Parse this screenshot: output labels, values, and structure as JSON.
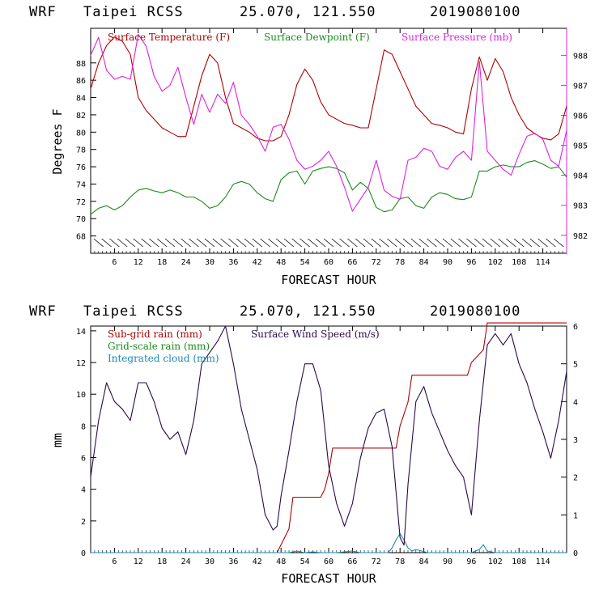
{
  "colors": {
    "temperature": "#b00000",
    "dewpoint": "#1a8a1a",
    "pressure": "#dd22dd",
    "subgrid_rain": "#b00000",
    "gridscale_rain": "#1a8a1a",
    "cloud": "#1a8ab0",
    "wind": "#2a0a4a",
    "axis_right_top": "#dd22dd"
  },
  "chart_data": [
    {
      "type": "line",
      "header": {
        "model": "WRF",
        "station": "Taipei RCSS",
        "coords": "25.070, 121.550",
        "init": "2019080100"
      },
      "xlabel": "FORECAST HOUR",
      "ylabel_left": "Degrees F",
      "xlim": [
        0,
        120
      ],
      "ylim_left": [
        66,
        92
      ],
      "ylim_right": [
        981.4,
        988.9
      ],
      "x_ticks": [
        6,
        12,
        18,
        24,
        30,
        36,
        42,
        48,
        54,
        60,
        66,
        72,
        78,
        84,
        90,
        96,
        102,
        108,
        114
      ],
      "x_tick_labels": [
        "6",
        "12",
        "18",
        "24",
        "30",
        "36",
        "42",
        "48",
        "54",
        "60",
        "66",
        "72",
        "78",
        "84",
        "90",
        "96",
        "102",
        "108",
        "114"
      ],
      "y_ticks_left": [
        68,
        70,
        72,
        74,
        76,
        78,
        80,
        82,
        84,
        86,
        88
      ],
      "y_tick_labels_left": [
        "68",
        "70",
        "72",
        "74",
        "76",
        "78",
        "80",
        "82",
        "84",
        "86",
        "88"
      ],
      "y_ticks_right": [
        982,
        983,
        984,
        985,
        986,
        987,
        988
      ],
      "y_tick_labels_right": [
        "982",
        "983",
        "984",
        "985",
        "986",
        "987",
        "988"
      ],
      "legend": [
        {
          "label": "Surface Temperature (F)",
          "color_key": "temperature"
        },
        {
          "label": "Surface Dewpoint (F)",
          "color_key": "dewpoint"
        },
        {
          "label": "Surface Pressure (mb)",
          "color_key": "pressure"
        }
      ],
      "series": [
        {
          "name": "Surface Temperature (F)",
          "axis": "left",
          "color_key": "temperature",
          "x": [
            0,
            2,
            4,
            6,
            8,
            10,
            12,
            14,
            16,
            18,
            20,
            22,
            24,
            26,
            28,
            30,
            32,
            34,
            36,
            38,
            40,
            42,
            44,
            46,
            48,
            50,
            52,
            54,
            56,
            58,
            60,
            62,
            64,
            66,
            68,
            70,
            72,
            74,
            76,
            78,
            80,
            82,
            84,
            86,
            88,
            90,
            92,
            94,
            96,
            98,
            100,
            102,
            104,
            106,
            108,
            110,
            112,
            114,
            116,
            118,
            120
          ],
          "y": [
            85,
            88,
            90,
            91,
            90.5,
            89,
            84,
            82.5,
            81.5,
            80.5,
            80,
            79.5,
            79.5,
            83,
            86.5,
            89,
            88,
            84,
            81,
            80.5,
            80,
            79.3,
            79,
            79,
            79.5,
            82,
            85.5,
            87.3,
            86,
            83.5,
            82,
            81.5,
            81,
            80.8,
            80.5,
            80.5,
            85,
            89.5,
            89,
            87,
            85,
            83,
            82,
            81,
            80.8,
            80.5,
            80,
            79.8,
            85,
            88.7,
            86,
            88.5,
            87,
            84,
            82,
            80.5,
            79.8,
            79.3,
            79.1,
            79.8,
            83
          ]
        },
        {
          "name": "Surface Dewpoint (F)",
          "axis": "left",
          "color_key": "dewpoint",
          "x": [
            0,
            2,
            4,
            6,
            8,
            10,
            12,
            14,
            16,
            18,
            20,
            22,
            24,
            26,
            28,
            30,
            32,
            34,
            36,
            38,
            40,
            42,
            44,
            46,
            48,
            50,
            52,
            54,
            56,
            58,
            60,
            62,
            64,
            66,
            68,
            70,
            72,
            74,
            76,
            78,
            80,
            82,
            84,
            86,
            88,
            90,
            92,
            94,
            96,
            98,
            100,
            102,
            104,
            106,
            108,
            110,
            112,
            114,
            116,
            118,
            120
          ],
          "y": [
            70.5,
            71.2,
            71.5,
            71,
            71.5,
            72.5,
            73.3,
            73.5,
            73.2,
            73,
            73.3,
            73,
            72.5,
            72.5,
            72,
            71.2,
            71.5,
            72.5,
            74,
            74.3,
            74,
            73,
            72.3,
            72,
            74.5,
            75.3,
            75.5,
            74,
            75.5,
            75.8,
            76,
            75.8,
            75.3,
            73.3,
            74.2,
            73.5,
            71.3,
            70.8,
            71,
            72.3,
            72.5,
            71.5,
            71.2,
            72.5,
            73,
            72.8,
            72.3,
            72.2,
            72.5,
            75.5,
            75.5,
            76,
            76.2,
            76,
            76,
            76.5,
            76.7,
            76.3,
            75.8,
            76,
            74.8
          ]
        },
        {
          "name": "Surface Pressure (mb)",
          "axis": "right",
          "color_key": "pressure",
          "x": [
            0,
            2,
            4,
            6,
            8,
            10,
            12,
            14,
            16,
            18,
            20,
            22,
            24,
            26,
            28,
            30,
            32,
            34,
            36,
            38,
            40,
            42,
            44,
            46,
            48,
            50,
            52,
            54,
            56,
            58,
            60,
            62,
            64,
            66,
            68,
            70,
            72,
            74,
            76,
            78,
            80,
            82,
            84,
            86,
            88,
            90,
            92,
            94,
            96,
            98,
            100,
            102,
            104,
            106,
            108,
            110,
            112,
            114,
            116,
            118,
            120
          ],
          "y": [
            988,
            988.6,
            987.5,
            987.2,
            987.3,
            987.2,
            988.7,
            988.3,
            987.3,
            986.8,
            987,
            987.6,
            986.6,
            985.7,
            986.7,
            986.1,
            986.7,
            986.4,
            987.1,
            986,
            985.7,
            985.3,
            984.8,
            985.6,
            985.7,
            985.2,
            984.5,
            984.2,
            984.3,
            984.5,
            984.8,
            984.3,
            983.6,
            982.8,
            983.2,
            983.6,
            984.5,
            983.5,
            983.3,
            983.2,
            984.5,
            984.6,
            984.9,
            984.8,
            984.3,
            984.2,
            984.6,
            984.8,
            984.5,
            987.8,
            984.8,
            984.5,
            984.2,
            984,
            984.7,
            985.3,
            985.4,
            985.2,
            984.5,
            984.3,
            985.5
          ]
        }
      ],
      "wind_barbs_hours": [
        2,
        4,
        6,
        8,
        10,
        12,
        14,
        16,
        18,
        20,
        22,
        24,
        26,
        28,
        30,
        32,
        34,
        36,
        38,
        40,
        42,
        44,
        46,
        48,
        50,
        52,
        54,
        56,
        58,
        60,
        62,
        64,
        66,
        68,
        70,
        72,
        74,
        76,
        78,
        80,
        82,
        84,
        86,
        88,
        90,
        92,
        94,
        96,
        98,
        100,
        102,
        104,
        106,
        108,
        110,
        112,
        114,
        116,
        118
      ]
    },
    {
      "type": "line",
      "header": {
        "model": "WRF",
        "station": "Taipei RCSS",
        "coords": "25.070, 121.550",
        "init": "2019080100"
      },
      "xlabel": "FORECAST HOUR",
      "ylabel_left": "mm",
      "xlim": [
        0,
        120
      ],
      "ylim_left": [
        0,
        14.3
      ],
      "ylim_right": [
        0,
        6
      ],
      "x_ticks": [
        6,
        12,
        18,
        24,
        30,
        36,
        42,
        48,
        54,
        60,
        66,
        72,
        78,
        84,
        90,
        96,
        102,
        108,
        114
      ],
      "x_tick_labels": [
        "6",
        "12",
        "18",
        "24",
        "30",
        "36",
        "42",
        "48",
        "54",
        "60",
        "66",
        "72",
        "78",
        "84",
        "90",
        "96",
        "102",
        "108",
        "114"
      ],
      "y_ticks_left": [
        0,
        2,
        4,
        6,
        8,
        10,
        12,
        14
      ],
      "y_tick_labels_left": [
        "0",
        "2",
        "4",
        "6",
        "8",
        "10",
        "12",
        "14"
      ],
      "y_ticks_right": [
        0,
        1,
        2,
        3,
        4,
        5,
        6
      ],
      "y_tick_labels_right": [
        "0",
        "1",
        "2",
        "3",
        "4",
        "5",
        "6"
      ],
      "legend": [
        {
          "label": "Sub-grid rain (mm)",
          "color_key": "subgrid_rain"
        },
        {
          "label": "Surface Wind Speed (m/s)",
          "color_key": "wind"
        },
        {
          "label": "Grid-scale rain (mm)",
          "color_key": "gridscale_rain"
        },
        {
          "label": "Integrated cloud (mm)",
          "color_key": "cloud"
        }
      ],
      "series": [
        {
          "name": "Sub-grid rain (mm)",
          "axis": "left",
          "color_key": "subgrid_rain",
          "x": [
            0,
            47,
            48,
            50,
            51,
            58,
            59,
            59.5,
            60,
            61,
            77,
            78,
            80,
            81,
            95,
            96,
            99,
            100,
            120
          ],
          "y": [
            0,
            0,
            0.5,
            1.5,
            3.5,
            3.5,
            4,
            4.5,
            5,
            6.6,
            6.6,
            8,
            9.5,
            11.2,
            11.2,
            12,
            12.8,
            14.5,
            14.5
          ]
        },
        {
          "name": "Integrated cloud (mm)",
          "axis": "left",
          "color_key": "cloud",
          "x": [
            0,
            50,
            52,
            54,
            56,
            58,
            62,
            64,
            66,
            68,
            75,
            76,
            77,
            78,
            79,
            80,
            81,
            82,
            85,
            96,
            98,
            99,
            100,
            102,
            120
          ],
          "y": [
            0,
            0,
            0.1,
            0,
            0.05,
            0,
            0,
            0.05,
            0.1,
            0,
            0,
            0.3,
            0.8,
            1.2,
            0.8,
            0.3,
            0.1,
            0.2,
            0,
            0,
            0.2,
            0.5,
            0.1,
            0,
            0
          ]
        },
        {
          "name": "Surface Wind Speed (m/s)",
          "axis": "right",
          "color_key": "wind",
          "x": [
            0,
            2,
            4,
            6,
            8,
            10,
            12,
            14,
            16,
            18,
            20,
            22,
            24,
            26,
            28,
            30,
            32,
            34,
            36,
            38,
            40,
            42,
            44,
            46,
            47,
            48,
            50,
            52,
            54,
            56,
            58,
            60,
            62,
            64,
            66,
            68,
            70,
            72,
            74,
            76,
            78,
            79,
            80,
            82,
            84,
            86,
            88,
            90,
            92,
            94,
            96,
            98,
            100,
            102,
            104,
            106,
            108,
            110,
            112,
            114,
            116,
            118,
            120
          ],
          "y": [
            2,
            3.5,
            4.5,
            4,
            3.8,
            3.5,
            4.5,
            4.5,
            4,
            3.3,
            3,
            3.2,
            2.6,
            3.5,
            5,
            5.3,
            5.6,
            6,
            5,
            3.8,
            3,
            2.2,
            1,
            0.6,
            0.7,
            1.5,
            2.7,
            4,
            5,
            5,
            4.3,
            2.3,
            1.3,
            0.7,
            1.3,
            2.5,
            3.3,
            3.7,
            3.8,
            2.8,
            0.4,
            0.2,
            1.8,
            4,
            4.4,
            3.7,
            3.2,
            2.7,
            2.3,
            2,
            1,
            3.5,
            5.5,
            5.8,
            5.5,
            5.8,
            5,
            4.5,
            3.8,
            3.2,
            2.5,
            3.5,
            4.8
          ]
        }
      ]
    }
  ]
}
